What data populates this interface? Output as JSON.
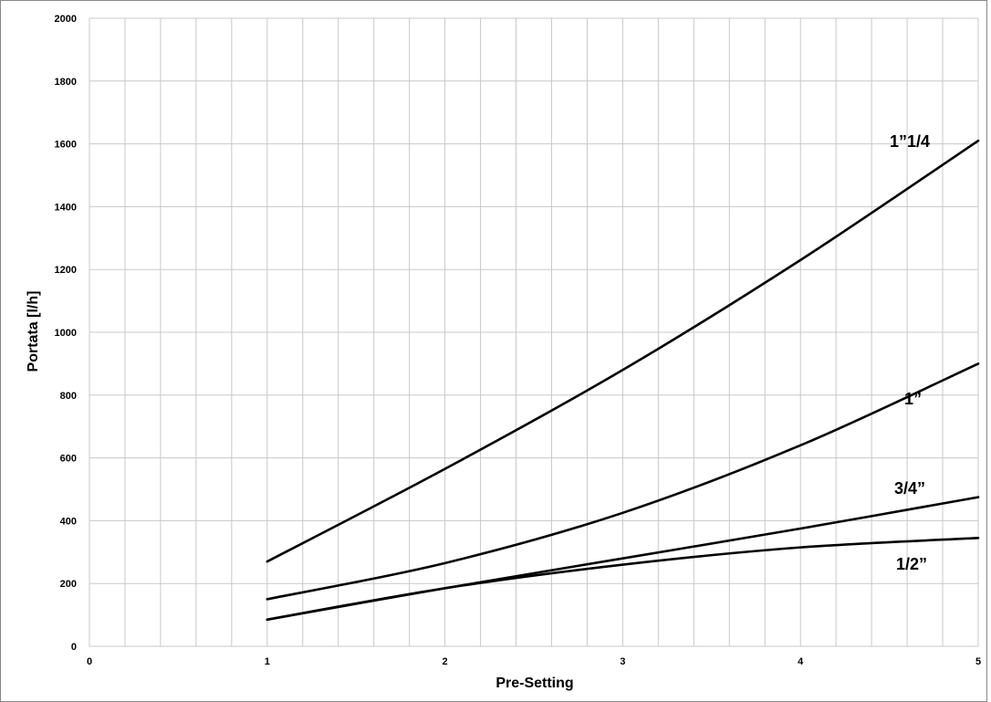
{
  "chart_data": {
    "type": "line",
    "title": "",
    "xlabel": "Pre-Setting",
    "ylabel": "Portata [l/h]",
    "xlim": [
      0,
      5
    ],
    "ylim": [
      0,
      2000
    ],
    "x_ticks": [
      0,
      1,
      2,
      3,
      4,
      5
    ],
    "y_ticks": [
      0,
      200,
      400,
      600,
      800,
      1000,
      1200,
      1400,
      1600,
      1800,
      2000
    ],
    "x_minor_step": 0.2,
    "grid": true,
    "legend": "inline labels at right end of each line",
    "series": [
      {
        "name": "1”1/4",
        "x": [
          1,
          2,
          3,
          4,
          5
        ],
        "values": [
          270,
          565,
          880,
          1230,
          1610
        ]
      },
      {
        "name": "1”",
        "x": [
          1,
          2,
          3,
          4,
          5
        ],
        "values": [
          150,
          265,
          425,
          640,
          900
        ]
      },
      {
        "name": "3/4”",
        "x": [
          1,
          2,
          3,
          4,
          5
        ],
        "values": [
          85,
          185,
          280,
          375,
          475
        ]
      },
      {
        "name": "1/2”",
        "x": [
          1,
          2,
          3,
          4,
          5
        ],
        "values": [
          85,
          185,
          260,
          315,
          345
        ]
      }
    ]
  }
}
